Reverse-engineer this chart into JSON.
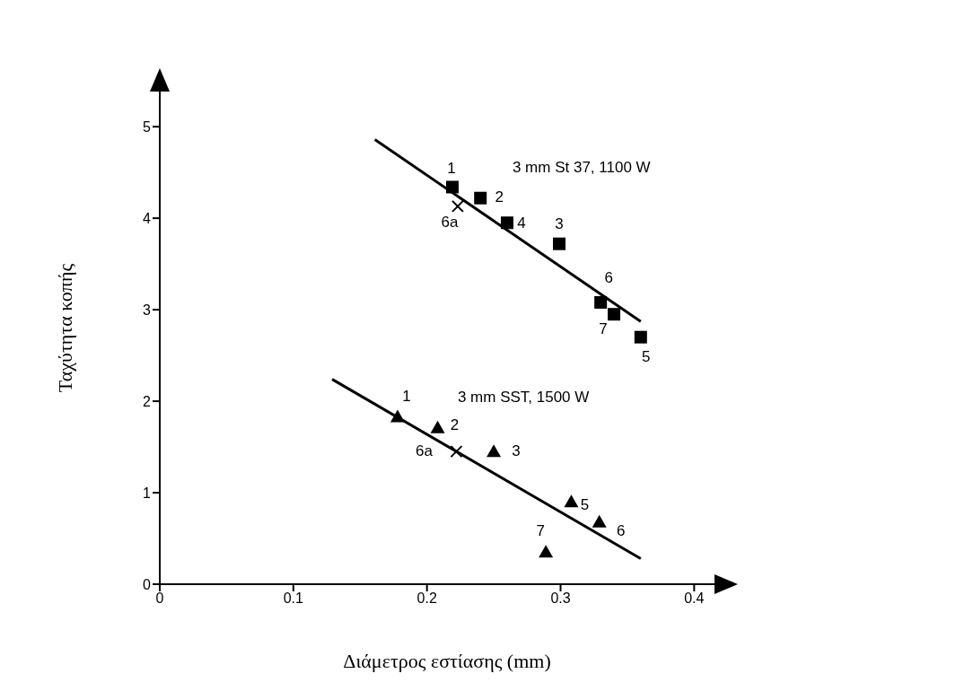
{
  "chart_data": {
    "type": "scatter",
    "xlabel": "Διάμετρος εστίασης (mm)",
    "ylabel": "Ταχύτητα κοπής",
    "xlim": [
      0,
      0.43
    ],
    "ylim": [
      0,
      5.6
    ],
    "xticks": [
      0,
      0.1,
      0.2,
      0.3,
      0.4
    ],
    "yticks": [
      0,
      1,
      2,
      3,
      4,
      5
    ],
    "grid": false,
    "legend": false,
    "series": [
      {
        "name": "3 mm St 37, 1100 W",
        "type": "scatter",
        "marker": "square",
        "color": "#000000",
        "x": [
          0.219,
          0.24,
          0.26,
          0.299,
          0.33,
          0.34,
          0.36
        ],
        "values": [
          4.34,
          4.22,
          3.95,
          3.72,
          3.08,
          2.95,
          2.7
        ]
      },
      {
        "type": "scatter",
        "marker": "cross",
        "color": "#000000",
        "x": [
          0.223
        ],
        "values": [
          4.13
        ]
      },
      {
        "type": "line",
        "marker": "none",
        "line_style": "solid",
        "color": "#000000",
        "x": [
          0.161,
          0.36
        ],
        "values": [
          4.86,
          2.87
        ]
      },
      {
        "name": "3 mm SST, 1500 W",
        "type": "scatter",
        "marker": "triangle",
        "color": "#000000",
        "x": [
          0.178,
          0.208,
          0.25,
          0.308,
          0.329,
          0.289
        ],
        "values": [
          1.83,
          1.71,
          1.45,
          0.9,
          0.68,
          0.35
        ]
      },
      {
        "type": "scatter",
        "marker": "cross",
        "color": "#000000",
        "x": [
          0.222
        ],
        "values": [
          1.45
        ]
      },
      {
        "type": "line",
        "marker": "none",
        "line_style": "solid",
        "color": "#000000",
        "x": [
          0.129,
          0.36
        ],
        "values": [
          2.24,
          0.28
        ]
      }
    ],
    "annotations": [
      {
        "text": "1",
        "x": 0.219,
        "y": 4.34
      },
      {
        "text": "2",
        "x": 0.24,
        "y": 4.22
      },
      {
        "text": "6a",
        "x": 0.223,
        "y": 4.13
      },
      {
        "text": "4",
        "x": 0.26,
        "y": 3.95
      },
      {
        "text": "3",
        "x": 0.299,
        "y": 3.72
      },
      {
        "text": "6",
        "x": 0.33,
        "y": 3.08
      },
      {
        "text": "7",
        "x": 0.34,
        "y": 2.95
      },
      {
        "text": "5",
        "x": 0.36,
        "y": 2.7
      },
      {
        "text": "1",
        "x": 0.178,
        "y": 1.83
      },
      {
        "text": "2",
        "x": 0.208,
        "y": 1.71
      },
      {
        "text": "6a",
        "x": 0.222,
        "y": 1.45
      },
      {
        "text": "3",
        "x": 0.25,
        "y": 1.45
      },
      {
        "text": "5",
        "x": 0.308,
        "y": 0.9
      },
      {
        "text": "6",
        "x": 0.329,
        "y": 0.68
      },
      {
        "text": "7",
        "x": 0.289,
        "y": 0.35
      }
    ]
  }
}
